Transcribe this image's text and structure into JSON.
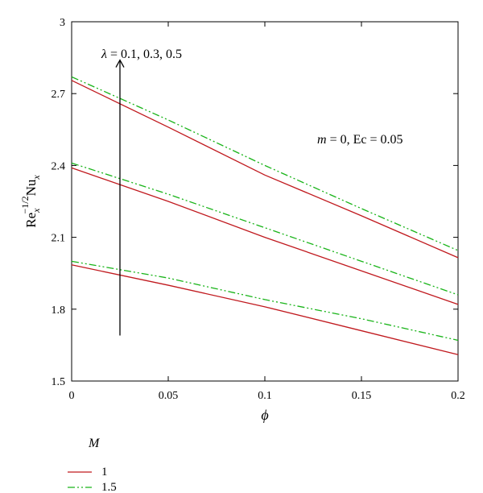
{
  "chart_data": {
    "type": "line",
    "xlabel": "ϕ",
    "ylabel": {
      "base": "Re",
      "sub1": "x",
      "sup": "−1/2",
      "mid": "Nu",
      "sub2": "x"
    },
    "xlim": [
      0,
      0.2
    ],
    "ylim": [
      1.5,
      3.0
    ],
    "xticks": [
      0,
      0.05,
      0.1,
      0.15,
      0.2
    ],
    "xtick_labels": [
      "0",
      "0.05",
      "0.1",
      "0.15",
      "0.2"
    ],
    "yticks": [
      1.5,
      1.8,
      2.1,
      2.4,
      2.7,
      3.0
    ],
    "ytick_labels": [
      "1.5",
      "1.8",
      "2.1",
      "2.4",
      "2.7",
      "3"
    ],
    "grid": false,
    "annotations": {
      "lambda": {
        "symbol": "λ",
        "text": " = 0.1, 0.3, 0.5"
      },
      "params": {
        "m": "m",
        "text": " = 0, Ec = 0.05"
      }
    },
    "arrow": {
      "x": 0.025,
      "y_from": 1.69,
      "y_to": 2.84
    },
    "legend": {
      "title": "M",
      "placement": "bottom-left"
    },
    "x": [
      0,
      0.05,
      0.1,
      0.15,
      0.2
    ],
    "series": [
      {
        "name": "1",
        "style": "solid",
        "color": "#c0191e",
        "group": "0.1",
        "values": [
          1.985,
          1.9,
          1.81,
          1.71,
          1.61
        ]
      },
      {
        "name": "1.5",
        "style": "dashdotdot",
        "color": "#19b419",
        "group": "0.1",
        "values": [
          2.0,
          1.93,
          1.84,
          1.76,
          1.67
        ]
      },
      {
        "name": "1",
        "style": "solid",
        "color": "#c0191e",
        "group": "0.3",
        "values": [
          2.39,
          2.25,
          2.1,
          1.96,
          1.82
        ]
      },
      {
        "name": "1.5",
        "style": "dashdotdot",
        "color": "#19b419",
        "group": "0.3",
        "values": [
          2.41,
          2.28,
          2.14,
          2.0,
          1.86
        ]
      },
      {
        "name": "1",
        "style": "solid",
        "color": "#c0191e",
        "group": "0.5",
        "values": [
          2.755,
          2.56,
          2.36,
          2.19,
          2.015
        ]
      },
      {
        "name": "1.5",
        "style": "dashdotdot",
        "color": "#19b419",
        "group": "0.5",
        "values": [
          2.77,
          2.59,
          2.4,
          2.22,
          2.045
        ]
      }
    ],
    "legend_entries": [
      {
        "label": "1",
        "style": "solid",
        "color": "#c0191e"
      },
      {
        "label": "1.5",
        "style": "dashdotdot",
        "color": "#19b419"
      }
    ]
  }
}
